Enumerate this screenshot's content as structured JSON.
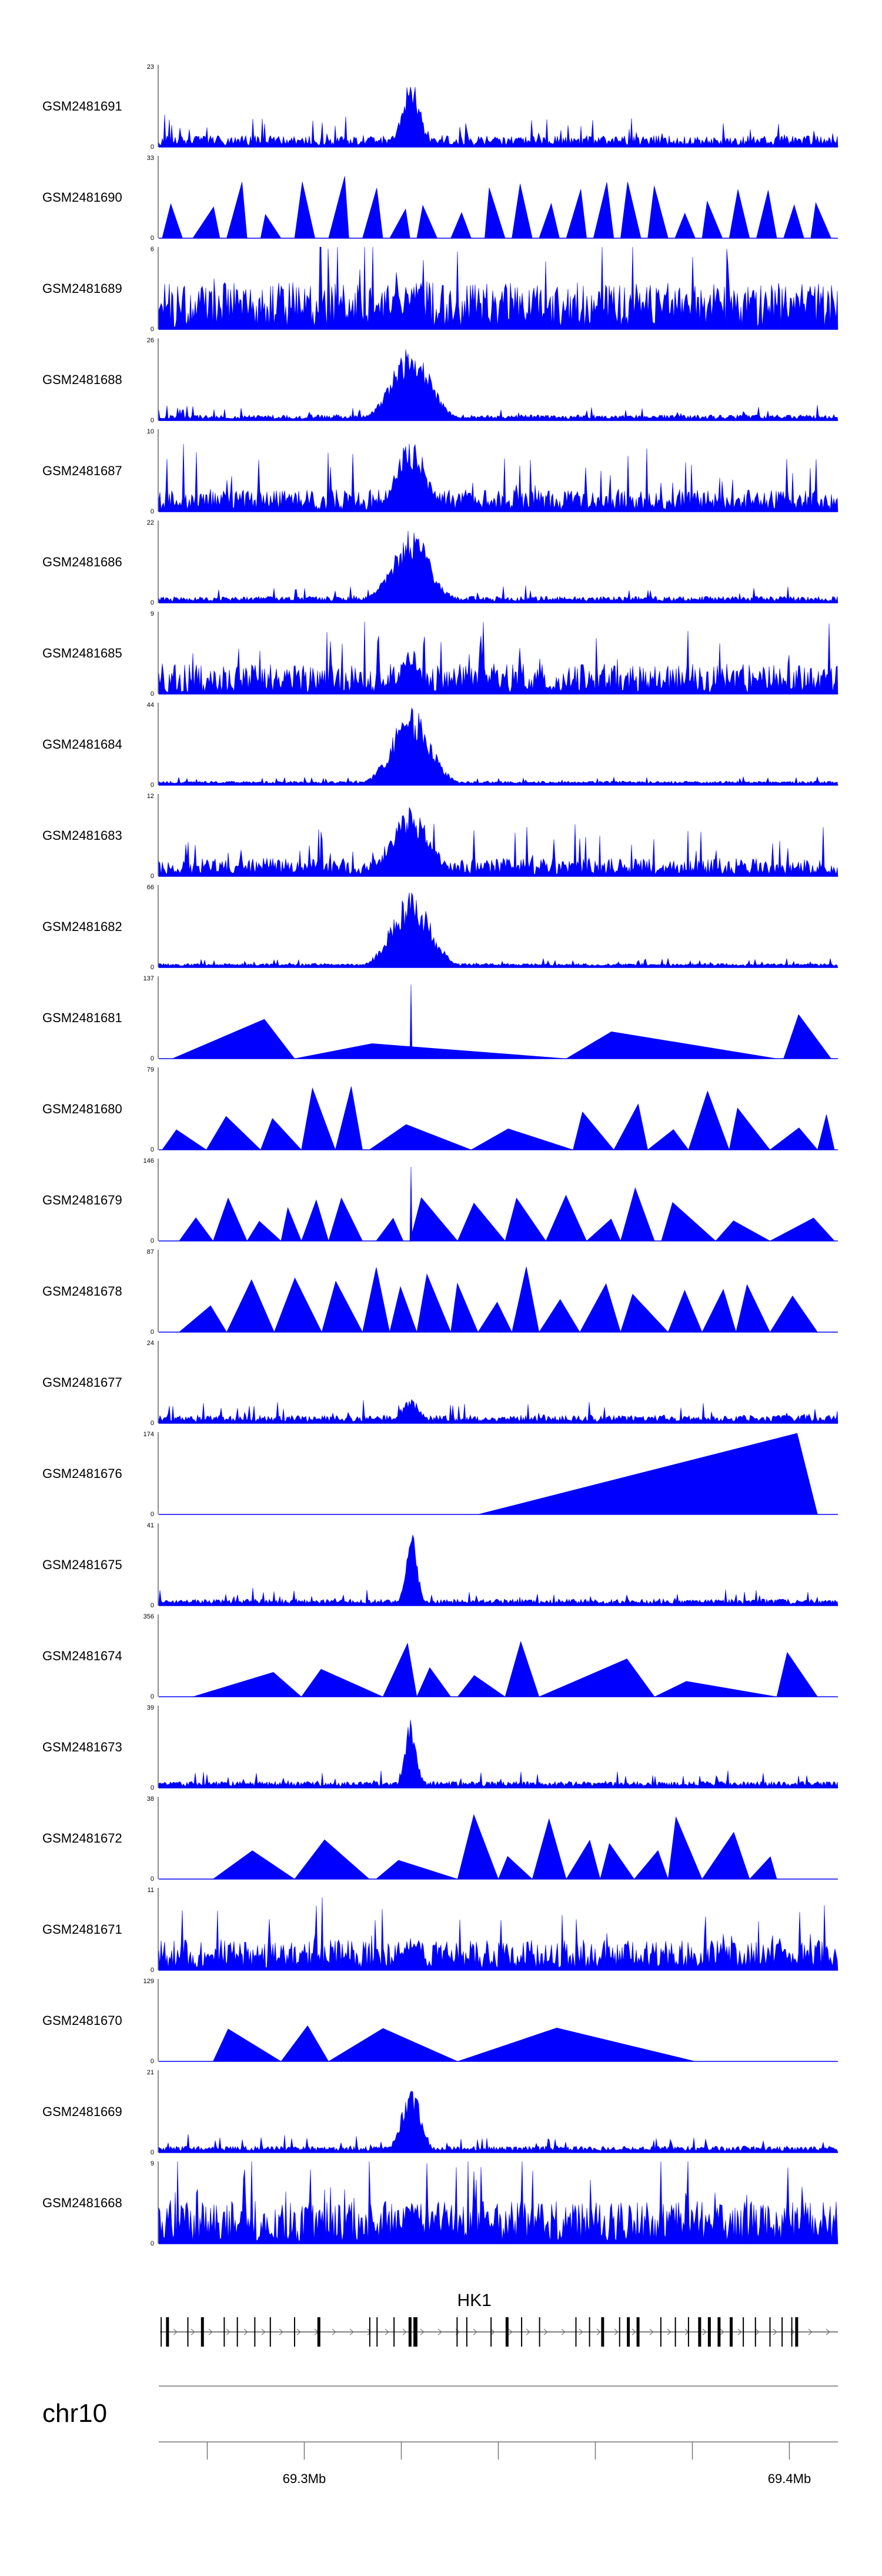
{
  "chart_data": {
    "type": "area",
    "title": "",
    "chromosome": "chr10",
    "x_unit": "Mb",
    "x_range": [
      69.27,
      69.41
    ],
    "x_ticks": [
      {
        "value": 69.3,
        "label": "69.3Mb"
      },
      {
        "value": 69.4,
        "label": "69.4Mb"
      }
    ],
    "x_minor_ticks": [
      69.28,
      69.3,
      69.32,
      69.34,
      69.36,
      69.38,
      69.4
    ],
    "peak_position": 69.322,
    "tracks": [
      {
        "name": "GSM2481691",
        "ymax": 23,
        "style": "noisy",
        "noise": 0.12,
        "peak": 0.85,
        "peak_width": 0.0018,
        "fills": []
      },
      {
        "name": "GSM2481690",
        "ymax": 33,
        "style": "sparse",
        "noise": 0.0,
        "peak": 0.0,
        "peak_width": 0.002,
        "fills": [
          [
            0.005,
            0.035
          ],
          [
            0.05,
            0.09
          ],
          [
            0.1,
            0.13
          ],
          [
            0.15,
            0.18
          ],
          [
            0.2,
            0.23
          ],
          [
            0.25,
            0.28
          ],
          [
            0.3,
            0.33
          ],
          [
            0.34,
            0.37
          ],
          [
            0.38,
            0.41
          ],
          [
            0.43,
            0.46
          ],
          [
            0.48,
            0.51
          ],
          [
            0.52,
            0.55
          ],
          [
            0.56,
            0.59
          ],
          [
            0.6,
            0.63
          ],
          [
            0.64,
            0.67
          ],
          [
            0.68,
            0.71
          ],
          [
            0.72,
            0.75
          ],
          [
            0.76,
            0.79
          ],
          [
            0.8,
            0.83
          ],
          [
            0.84,
            0.87
          ],
          [
            0.88,
            0.91
          ],
          [
            0.92,
            0.95
          ],
          [
            0.96,
            0.99
          ]
        ]
      },
      {
        "name": "GSM2481689",
        "ymax": 6,
        "style": "dense",
        "noise": 0.55,
        "peak": 0.4,
        "peak_width": 0.002,
        "fills": []
      },
      {
        "name": "GSM2481688",
        "ymax": 26,
        "style": "noisy",
        "noise": 0.05,
        "peak": 0.9,
        "peak_width": 0.004,
        "fills": []
      },
      {
        "name": "GSM2481687",
        "ymax": 10,
        "style": "noisy",
        "noise": 0.25,
        "peak": 0.9,
        "peak_width": 0.003,
        "fills": []
      },
      {
        "name": "GSM2481686",
        "ymax": 22,
        "style": "noisy",
        "noise": 0.06,
        "peak": 0.9,
        "peak_width": 0.004,
        "fills": []
      },
      {
        "name": "GSM2481685",
        "ymax": 9,
        "style": "dense",
        "noise": 0.35,
        "peak": 0.55,
        "peak_width": 0.002,
        "fills": []
      },
      {
        "name": "GSM2481684",
        "ymax": 44,
        "style": "noisy",
        "noise": 0.03,
        "peak": 0.95,
        "peak_width": 0.004,
        "fills": []
      },
      {
        "name": "GSM2481683",
        "ymax": 12,
        "style": "noisy",
        "noise": 0.2,
        "peak": 0.85,
        "peak_width": 0.004,
        "fills": []
      },
      {
        "name": "GSM2481682",
        "ymax": 66,
        "style": "noisy",
        "noise": 0.03,
        "peak": 0.92,
        "peak_width": 0.004,
        "fills": []
      },
      {
        "name": "GSM2481681",
        "ymax": 137,
        "style": "sparse",
        "noise": 0.0,
        "peak": 0.9,
        "peak_width": 0.001,
        "fills": [
          [
            0.02,
            0.2
          ],
          [
            0.2,
            0.6
          ],
          [
            0.6,
            0.91
          ],
          [
            0.92,
            0.99
          ]
        ]
      },
      {
        "name": "GSM2481680",
        "ymax": 79,
        "style": "sparse",
        "noise": 0.0,
        "peak": 0.0,
        "peak_width": 0.002,
        "fills": [
          [
            0.005,
            0.07
          ],
          [
            0.07,
            0.15
          ],
          [
            0.15,
            0.21
          ],
          [
            0.21,
            0.26
          ],
          [
            0.26,
            0.3
          ],
          [
            0.31,
            0.46
          ],
          [
            0.46,
            0.61
          ],
          [
            0.61,
            0.67
          ],
          [
            0.67,
            0.72
          ],
          [
            0.72,
            0.78
          ],
          [
            0.78,
            0.84
          ],
          [
            0.84,
            0.9
          ],
          [
            0.9,
            0.97
          ],
          [
            0.97,
            0.995
          ]
        ]
      },
      {
        "name": "GSM2481679",
        "ymax": 146,
        "style": "sparse",
        "noise": 0.0,
        "peak": 0.9,
        "peak_width": 0.004,
        "fills": [
          [
            0.03,
            0.08
          ],
          [
            0.08,
            0.13
          ],
          [
            0.13,
            0.18
          ],
          [
            0.18,
            0.21
          ],
          [
            0.21,
            0.25
          ],
          [
            0.25,
            0.3
          ],
          [
            0.32,
            0.36
          ],
          [
            0.37,
            0.44
          ],
          [
            0.44,
            0.51
          ],
          [
            0.51,
            0.57
          ],
          [
            0.57,
            0.63
          ],
          [
            0.63,
            0.68
          ],
          [
            0.68,
            0.73
          ],
          [
            0.74,
            0.82
          ],
          [
            0.82,
            0.9
          ],
          [
            0.9,
            0.995
          ]
        ]
      },
      {
        "name": "GSM2481678",
        "ymax": 87,
        "style": "sparse",
        "noise": 0.0,
        "peak": 0.0,
        "peak_width": 0.002,
        "fills": [
          [
            0.03,
            0.1
          ],
          [
            0.1,
            0.17
          ],
          [
            0.17,
            0.24
          ],
          [
            0.24,
            0.3
          ],
          [
            0.3,
            0.34
          ],
          [
            0.34,
            0.38
          ],
          [
            0.38,
            0.43
          ],
          [
            0.43,
            0.47
          ],
          [
            0.47,
            0.52
          ],
          [
            0.52,
            0.56
          ],
          [
            0.56,
            0.62
          ],
          [
            0.62,
            0.68
          ],
          [
            0.68,
            0.75
          ],
          [
            0.75,
            0.8
          ],
          [
            0.8,
            0.85
          ],
          [
            0.85,
            0.9
          ],
          [
            0.9,
            0.97
          ]
        ]
      },
      {
        "name": "GSM2481677",
        "ymax": 24,
        "style": "noisy",
        "noise": 0.08,
        "peak": 0.3,
        "peak_width": 0.002,
        "fills": []
      },
      {
        "name": "GSM2481676",
        "ymax": 174,
        "style": "ramp",
        "noise": 0.0,
        "peak": 0.0,
        "peak_width": 0.002,
        "fills": [
          [
            0.47,
            0.97
          ]
        ]
      },
      {
        "name": "GSM2481675",
        "ymax": 41,
        "style": "noisy",
        "noise": 0.06,
        "peak": 0.95,
        "peak_width": 0.0012,
        "fills": []
      },
      {
        "name": "GSM2481674",
        "ymax": 356,
        "style": "sparse",
        "noise": 0.0,
        "peak": 0.0,
        "peak_width": 0.002,
        "fills": [
          [
            0.05,
            0.21
          ],
          [
            0.21,
            0.33
          ],
          [
            0.33,
            0.38
          ],
          [
            0.38,
            0.43
          ],
          [
            0.44,
            0.51
          ],
          [
            0.51,
            0.56
          ],
          [
            0.56,
            0.73
          ],
          [
            0.73,
            0.91
          ],
          [
            0.91,
            0.97
          ]
        ]
      },
      {
        "name": "GSM2481673",
        "ymax": 39,
        "style": "noisy",
        "noise": 0.06,
        "peak": 0.95,
        "peak_width": 0.0012,
        "fills": []
      },
      {
        "name": "GSM2481672",
        "ymax": 38,
        "style": "sparse",
        "noise": 0.0,
        "peak": 0.0,
        "peak_width": 0.002,
        "fills": [
          [
            0.08,
            0.2
          ],
          [
            0.2,
            0.31
          ],
          [
            0.32,
            0.44
          ],
          [
            0.44,
            0.5
          ],
          [
            0.5,
            0.55
          ],
          [
            0.55,
            0.6
          ],
          [
            0.6,
            0.65
          ],
          [
            0.65,
            0.7
          ],
          [
            0.7,
            0.75
          ],
          [
            0.75,
            0.8
          ],
          [
            0.8,
            0.87
          ],
          [
            0.87,
            0.91
          ]
        ]
      },
      {
        "name": "GSM2481671",
        "ymax": 11,
        "style": "dense",
        "noise": 0.35,
        "peak": 0.4,
        "peak_width": 0.002,
        "fills": []
      },
      {
        "name": "GSM2481670",
        "ymax": 129,
        "style": "sparse",
        "noise": 0.0,
        "peak": 0.0,
        "peak_width": 0.002,
        "fills": [
          [
            0.08,
            0.18
          ],
          [
            0.18,
            0.25
          ],
          [
            0.25,
            0.44
          ],
          [
            0.44,
            0.79
          ]
        ]
      },
      {
        "name": "GSM2481669",
        "ymax": 21,
        "style": "noisy",
        "noise": 0.06,
        "peak": 0.9,
        "peak_width": 0.002,
        "fills": []
      },
      {
        "name": "GSM2481668",
        "ymax": 9,
        "style": "dense",
        "noise": 0.5,
        "peak": 0.5,
        "peak_width": 0.002,
        "fills": []
      }
    ],
    "gene": {
      "name": "HK1",
      "strand": "+",
      "exon_positions": [
        69.2705,
        69.2718,
        69.276,
        69.279,
        69.2835,
        69.2862,
        69.2898,
        69.293,
        69.298,
        69.303,
        69.3135,
        69.315,
        69.3185,
        69.3218,
        69.3228,
        69.3232,
        69.3315,
        69.3335,
        69.3385,
        69.3418,
        69.3448,
        69.3485,
        69.356,
        69.3588,
        69.3615,
        69.365,
        69.3668,
        69.3688,
        69.3735,
        69.3765,
        69.3792,
        69.3815,
        69.3835,
        69.3855,
        69.388,
        69.3905,
        69.393,
        69.396,
        69.3985,
        69.4005,
        69.4015
      ],
      "thick_exons": [
        69.2718,
        69.279,
        69.303,
        69.3218,
        69.3228,
        69.3418,
        69.3615,
        69.3668,
        69.3688,
        69.3815,
        69.3835,
        69.3855,
        69.388,
        69.4015
      ]
    }
  }
}
